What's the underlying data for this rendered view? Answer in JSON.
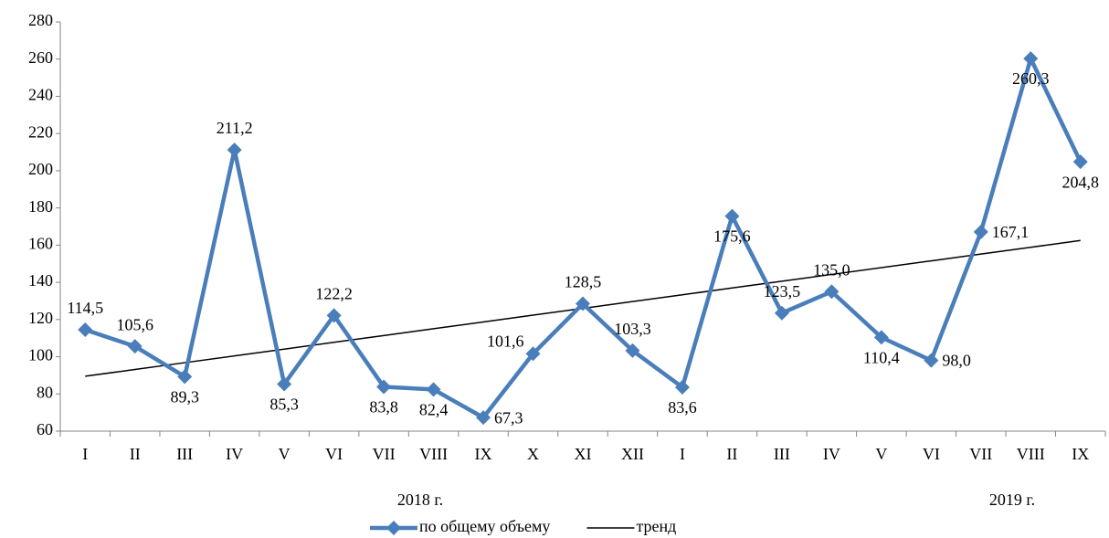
{
  "chart_data": {
    "type": "line",
    "categories": [
      "I",
      "II",
      "III",
      "IV",
      "V",
      "VI",
      "VII",
      "VIII",
      "IX",
      "X",
      "XI",
      "XII",
      "I",
      "II",
      "III",
      "IV",
      "V",
      "VI",
      "VII",
      "VIII",
      "IX"
    ],
    "series": [
      {
        "name": "по общему объему",
        "color": "#4a7ebb",
        "marker": "diamond",
        "values": [
          114.5,
          105.6,
          89.3,
          211.2,
          85.3,
          122.2,
          83.8,
          82.4,
          67.3,
          101.6,
          128.5,
          103.3,
          83.6,
          175.6,
          123.5,
          135.0,
          110.4,
          98.0,
          167.1,
          260.3,
          204.8
        ],
        "value_labels": [
          "114,5",
          "105,6",
          "89,3",
          "211,2",
          "85,3",
          "122,2",
          "83,8",
          "82,4",
          "67,3",
          "101,6",
          "128,5",
          "103,3",
          "83,6",
          "175,6",
          "123,5",
          "135,0",
          "110,4",
          "98,0",
          "167,1",
          "260,3",
          "204,8"
        ]
      },
      {
        "name": "тренд",
        "color": "#000000",
        "type": "trend",
        "values": [
          89.5,
          93.15,
          96.8,
          100.45,
          104.1,
          107.75,
          111.4,
          115.05,
          118.7,
          122.35,
          126.0,
          129.65,
          133.3,
          136.95,
          140.6,
          144.25,
          147.9,
          151.55,
          155.2,
          158.85,
          162.5
        ]
      }
    ],
    "annotations": [
      "2018 г.",
      "2019 г."
    ],
    "ylim": [
      60,
      280
    ],
    "yticks": [
      60,
      80,
      100,
      120,
      140,
      160,
      180,
      200,
      220,
      240,
      260,
      280
    ],
    "grid": false,
    "legend": "bottom"
  }
}
